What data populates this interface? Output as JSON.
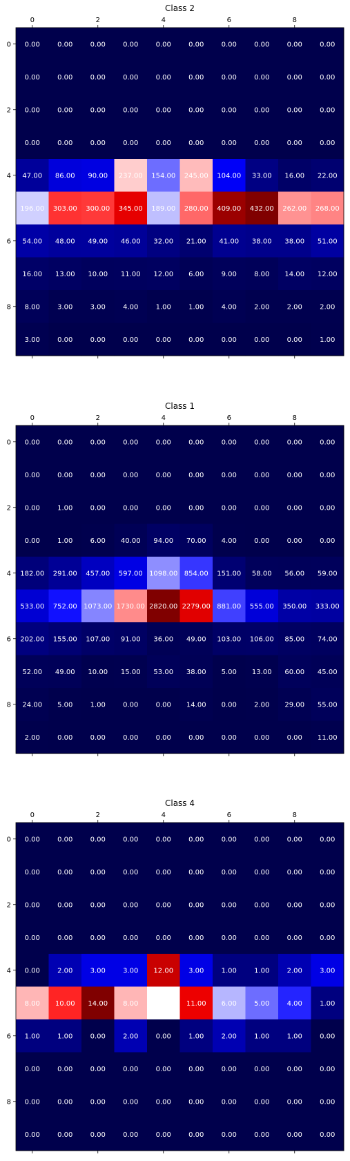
{
  "chart_data": [
    {
      "type": "heatmap",
      "title": "Class 2",
      "x_ticks": [
        "0",
        "2",
        "4",
        "6",
        "8"
      ],
      "y_ticks": [
        "0",
        "2",
        "4",
        "6",
        "8"
      ],
      "value_format": "2 decimals",
      "colormap": "seismic",
      "values": [
        [
          0,
          0,
          0,
          0,
          0,
          0,
          0,
          0,
          0,
          0
        ],
        [
          0,
          0,
          0,
          0,
          0,
          0,
          0,
          0,
          0,
          0
        ],
        [
          0,
          0,
          0,
          0,
          0,
          0,
          0,
          0,
          0,
          0
        ],
        [
          0,
          0,
          0,
          0,
          0,
          0,
          0,
          0,
          0,
          0
        ],
        [
          47,
          86,
          90,
          237,
          154,
          245,
          104,
          33,
          16,
          22
        ],
        [
          196,
          303,
          300,
          345,
          189,
          280,
          409,
          432,
          262,
          268
        ],
        [
          54,
          48,
          49,
          46,
          32,
          21,
          41,
          38,
          38,
          51
        ],
        [
          16,
          13,
          10,
          11,
          12,
          6,
          9,
          8,
          14,
          12
        ],
        [
          8,
          3,
          3,
          4,
          1,
          1,
          4,
          2,
          2,
          2
        ],
        [
          3,
          0,
          0,
          0,
          0,
          0,
          0,
          0,
          0,
          1
        ]
      ]
    },
    {
      "type": "heatmap",
      "title": "Class 1",
      "x_ticks": [
        "0",
        "2",
        "4",
        "6",
        "8"
      ],
      "y_ticks": [
        "0",
        "2",
        "4",
        "6",
        "8"
      ],
      "value_format": "2 decimals",
      "colormap": "seismic",
      "values": [
        [
          0,
          0,
          0,
          0,
          0,
          0,
          0,
          0,
          0,
          0
        ],
        [
          0,
          0,
          0,
          0,
          0,
          0,
          0,
          0,
          0,
          0
        ],
        [
          0,
          1,
          0,
          0,
          0,
          0,
          0,
          0,
          0,
          0
        ],
        [
          0,
          1,
          6,
          40,
          94,
          70,
          4,
          0,
          0,
          0
        ],
        [
          182,
          291,
          457,
          597,
          1098,
          854,
          151,
          58,
          56,
          59
        ],
        [
          533,
          752,
          1073,
          1730,
          2820,
          2279,
          881,
          555,
          350,
          333
        ],
        [
          202,
          155,
          107,
          91,
          36,
          49,
          103,
          106,
          85,
          74
        ],
        [
          52,
          49,
          10,
          15,
          53,
          38,
          5,
          13,
          60,
          45
        ],
        [
          24,
          5,
          1,
          0,
          0,
          14,
          0,
          2,
          29,
          55
        ],
        [
          2,
          0,
          0,
          0,
          0,
          0,
          0,
          0,
          0,
          11
        ]
      ]
    },
    {
      "type": "heatmap",
      "title": "Class 4",
      "x_ticks": [
        "0",
        "2",
        "4",
        "6",
        "8"
      ],
      "y_ticks": [
        "0",
        "2",
        "4",
        "6",
        "8"
      ],
      "value_format": "2 decimals",
      "colormap": "seismic",
      "values": [
        [
          0,
          0,
          0,
          0,
          0,
          0,
          0,
          0,
          0,
          0
        ],
        [
          0,
          0,
          0,
          0,
          0,
          0,
          0,
          0,
          0,
          0
        ],
        [
          0,
          0,
          0,
          0,
          0,
          0,
          0,
          0,
          0,
          0
        ],
        [
          0,
          0,
          0,
          0,
          0,
          0,
          0,
          0,
          0,
          0
        ],
        [
          0,
          2,
          3,
          3,
          12,
          3,
          1,
          1,
          2,
          3
        ],
        [
          8,
          10,
          14,
          8,
          7,
          11,
          6,
          5,
          4,
          1
        ],
        [
          1,
          1,
          0,
          2,
          0,
          1,
          2,
          1,
          1,
          0
        ],
        [
          0,
          0,
          0,
          0,
          0,
          0,
          0,
          0,
          0,
          0
        ],
        [
          0,
          0,
          0,
          0,
          0,
          0,
          0,
          0,
          0,
          0
        ],
        [
          0,
          0,
          0,
          0,
          0,
          0,
          0,
          0,
          0,
          0
        ]
      ]
    }
  ]
}
